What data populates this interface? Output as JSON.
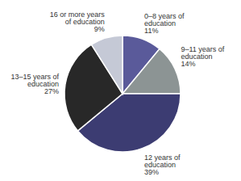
{
  "chart_data": {
    "type": "pie",
    "categories": [
      "0–8 years of education",
      "9–11 years of education",
      "12 years of education",
      "13–15 years of education",
      "16 or more years of education"
    ],
    "values": [
      11,
      14,
      39,
      27,
      9
    ],
    "value_labels": [
      "11%",
      "14%",
      "39%",
      "27%",
      "9%"
    ],
    "colors": [
      "#5a5a9a",
      "#8c9494",
      "#3c3c72",
      "#282828",
      "#c5c9d6"
    ],
    "data_labels": true
  }
}
